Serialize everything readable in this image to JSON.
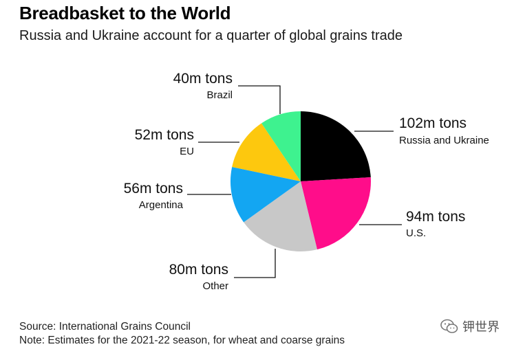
{
  "title": "Breadbasket to the World",
  "subtitle": "Russia and Ukraine account for a quarter of global grains trade",
  "chart_data": {
    "type": "pie",
    "unit": "m tons",
    "slices": [
      {
        "name": "Russia and Ukraine",
        "value": 102,
        "value_label": "102m tons",
        "color": "#000000"
      },
      {
        "name": "U.S.",
        "value": 94,
        "value_label": "94m tons",
        "color": "#ff0d8a"
      },
      {
        "name": "Other",
        "value": 80,
        "value_label": "80m tons",
        "color": "#c8c8c8"
      },
      {
        "name": "Argentina",
        "value": 56,
        "value_label": "56m tons",
        "color": "#13a6f2"
      },
      {
        "name": "EU",
        "value": 52,
        "value_label": "52m tons",
        "color": "#fdc80e"
      },
      {
        "name": "Brazil",
        "value": 40,
        "value_label": "40m tons",
        "color": "#3ef28f"
      }
    ]
  },
  "footer": {
    "source": "Source: International Grains Council",
    "note": "Note: Estimates for the 2021-22 season, for wheat and coarse grains"
  },
  "watermark": {
    "text": "钾世界",
    "icon": "wechat-icon"
  }
}
